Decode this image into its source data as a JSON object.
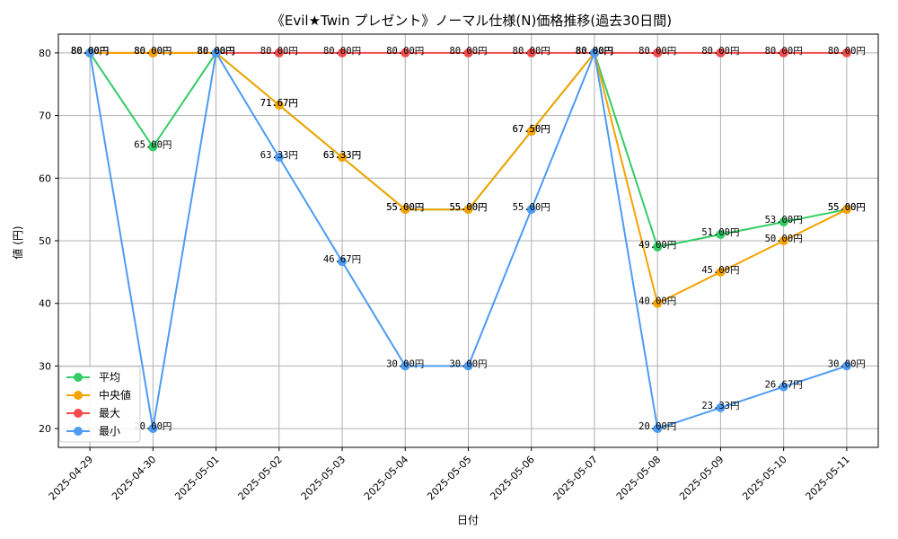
{
  "chart_data": {
    "type": "line",
    "title": "《Evil★Twin プレゼント》ノーマル仕様(N)価格推移(過去30日間)",
    "xlabel": "日付",
    "ylabel": "値 (円)",
    "ylim": [
      17,
      83
    ],
    "yticks": [
      20,
      30,
      40,
      50,
      60,
      70,
      80
    ],
    "grid": true,
    "legend_position": "lower-left",
    "label_suffix": "円",
    "categories": [
      "2025-04-29",
      "2025-04-30",
      "2025-05-01",
      "2025-05-02",
      "2025-05-03",
      "2025-05-04",
      "2025-05-05",
      "2025-05-06",
      "2025-05-07",
      "2025-05-08",
      "2025-05-09",
      "2025-05-10",
      "2025-05-11"
    ],
    "series": [
      {
        "name": "平均",
        "color": "#33cc66",
        "values": [
          80,
          65,
          80,
          71.67,
          63.33,
          55,
          55,
          67.5,
          80,
          49,
          51,
          53,
          55
        ]
      },
      {
        "name": "中央値",
        "color": "#f5a300",
        "values": [
          80,
          80,
          80,
          71.67,
          63.33,
          55,
          55,
          67.5,
          80,
          40,
          45,
          50,
          55
        ]
      },
      {
        "name": "最大",
        "color": "#f24b4b",
        "values": [
          80,
          80,
          80,
          80,
          80,
          80,
          80,
          80,
          80,
          80,
          80,
          80,
          80
        ]
      },
      {
        "name": "最小",
        "color": "#4d9bf2",
        "values": [
          80,
          20,
          80,
          63.33,
          46.67,
          30,
          30,
          55,
          80,
          20,
          23.33,
          26.67,
          30
        ]
      }
    ]
  }
}
